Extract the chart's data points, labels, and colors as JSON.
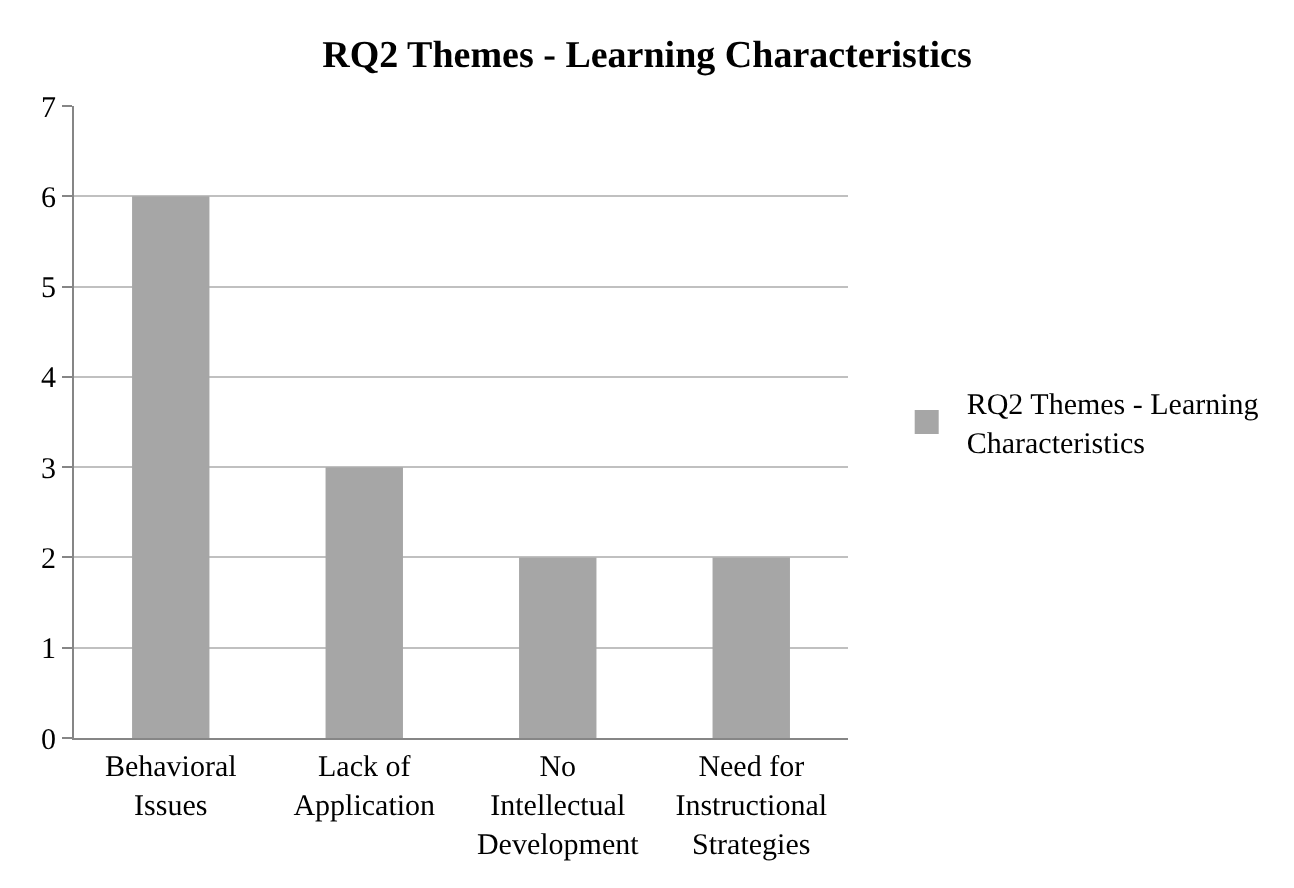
{
  "chart_data": {
    "type": "bar",
    "title": "RQ2 Themes - Learning Characteristics",
    "categories": [
      "Behavioral Issues",
      "Lack of Application",
      "No Intellectual Development",
      "Need for Instructional Strategies"
    ],
    "series": [
      {
        "name": "RQ2 Themes - Learning Characteristics",
        "color": "#a6a6a6",
        "values": [
          6,
          3,
          2,
          2
        ]
      }
    ],
    "ylim": [
      0,
      7
    ],
    "yticks": [
      0,
      1,
      2,
      3,
      4,
      5,
      6,
      7
    ],
    "grid": "y",
    "legend": "right"
  }
}
